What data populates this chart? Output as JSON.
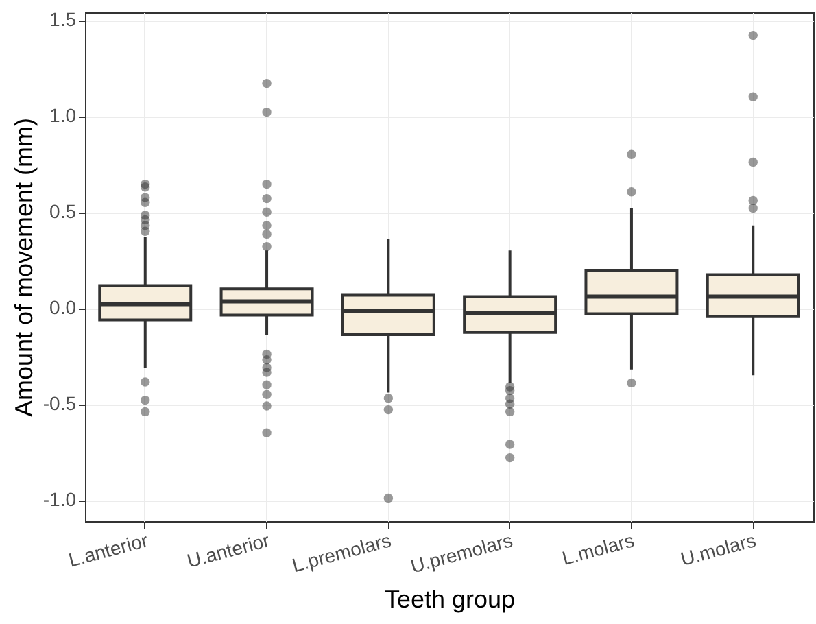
{
  "chart_data": {
    "type": "box",
    "xlabel": "Teeth group",
    "ylabel": "Amount of movement (mm)",
    "categories": [
      "L.anterior",
      "U.anterior",
      "L.premolars",
      "U.premolars",
      "L.molars",
      "U.molars"
    ],
    "boxes": [
      {
        "low": -0.31,
        "q1": -0.062,
        "median": 0.02,
        "q3": 0.117,
        "high": 0.37,
        "outliers": [
          0.645,
          0.63,
          0.576,
          0.55,
          0.484,
          0.46,
          0.43,
          0.4,
          -0.385,
          -0.48,
          -0.54
        ]
      },
      {
        "low": -0.14,
        "q1": -0.037,
        "median": 0.035,
        "q3": 0.1,
        "high": 0.3,
        "outliers": [
          1.17,
          1.02,
          0.645,
          0.57,
          0.5,
          0.43,
          0.385,
          0.32,
          -0.24,
          -0.27,
          -0.31,
          -0.335,
          -0.4,
          -0.45,
          -0.51,
          -0.65
        ]
      },
      {
        "low": -0.44,
        "q1": -0.139,
        "median": -0.015,
        "q3": 0.067,
        "high": 0.36,
        "outliers": [
          -0.47,
          -0.53,
          -0.99
        ]
      },
      {
        "low": -0.39,
        "q1": -0.127,
        "median": -0.025,
        "q3": 0.06,
        "high": 0.3,
        "outliers": [
          -0.41,
          -0.43,
          -0.47,
          -0.5,
          -0.54,
          -0.71,
          -0.78
        ]
      },
      {
        "low": -0.32,
        "q1": -0.03,
        "median": 0.06,
        "q3": 0.194,
        "high": 0.52,
        "outliers": [
          0.8,
          0.605,
          -0.39
        ]
      },
      {
        "low": -0.35,
        "q1": -0.045,
        "median": 0.06,
        "q3": 0.174,
        "high": 0.43,
        "outliers": [
          1.42,
          1.1,
          0.76,
          0.56,
          0.52
        ]
      }
    ],
    "color": "#f7eedd",
    "ylim": [
      -1.11,
      1.54
    ],
    "yticks": [
      {
        "value": -1,
        "label": "-1.0"
      },
      {
        "value": -0.5,
        "label": "-0.5"
      },
      {
        "value": 0,
        "label": "0.0"
      },
      {
        "value": 0.5,
        "label": "0.5"
      },
      {
        "value": 1,
        "label": "1.0"
      },
      {
        "value": 1.5,
        "label": "1.5"
      }
    ],
    "grid": true
  }
}
